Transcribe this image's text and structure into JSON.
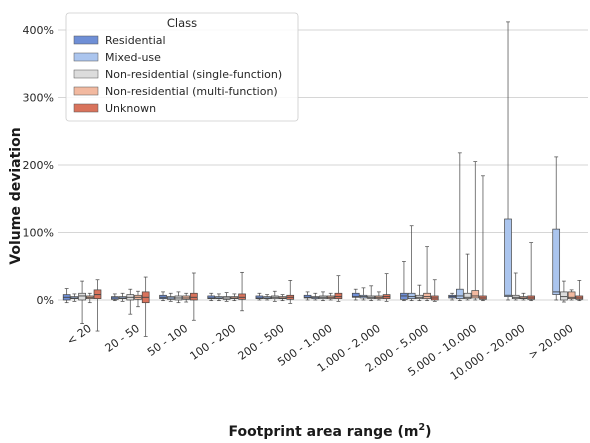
{
  "chart_data": {
    "type": "box",
    "xlabel": "Footprint area range (m",
    "xlabel_superscript": "2",
    "xlabel_suffix": ")",
    "ylabel": "Volume deviation",
    "ylim": [
      -0.2,
      4.4
    ],
    "yticks": [
      0,
      1,
      2,
      3,
      4
    ],
    "ytick_labels": [
      "0%",
      "100%",
      "200%",
      "300%",
      "400%"
    ],
    "grid": true,
    "legend": {
      "title": "Class",
      "placement": "top-left"
    },
    "categories": [
      "< 20",
      "20 - 50",
      "50 - 100",
      "100 - 200",
      "200 - 500",
      "500 - 1.000",
      "1.000 - 2.000",
      "2.000 - 5.000",
      "5.000 - 10.000",
      "10.000 - 20.000",
      "> 20.000"
    ],
    "series": [
      {
        "name": "Residential",
        "color": "#6f8fd6",
        "boxes": [
          {
            "whislo": -0.04,
            "q1": 0.0,
            "med": 0.04,
            "q3": 0.08,
            "whishi": 0.17
          },
          {
            "whislo": -0.01,
            "q1": 0.01,
            "med": 0.03,
            "q3": 0.05,
            "whishi": 0.09
          },
          {
            "whislo": -0.01,
            "q1": 0.02,
            "med": 0.04,
            "q3": 0.07,
            "whishi": 0.12
          },
          {
            "whislo": -0.01,
            "q1": 0.02,
            "med": 0.03,
            "q3": 0.06,
            "whishi": 0.1
          },
          {
            "whislo": 0.0,
            "q1": 0.02,
            "med": 0.03,
            "q3": 0.06,
            "whishi": 0.1
          },
          {
            "whislo": 0.0,
            "q1": 0.03,
            "med": 0.04,
            "q3": 0.07,
            "whishi": 0.12
          },
          {
            "whislo": 0.0,
            "q1": 0.04,
            "med": 0.05,
            "q3": 0.1,
            "whishi": 0.16
          },
          {
            "whislo": -0.01,
            "q1": 0.01,
            "med": 0.06,
            "q3": 0.1,
            "whishi": 0.57
          },
          {
            "whislo": 0.0,
            "q1": 0.03,
            "med": 0.05,
            "q3": 0.07,
            "whishi": 0.1
          },
          null,
          null
        ]
      },
      {
        "name": "Mixed-use",
        "color": "#abc5ee",
        "boxes": [
          {
            "whislo": -0.02,
            "q1": 0.02,
            "med": 0.03,
            "q3": 0.05,
            "whishi": 0.09
          },
          {
            "whislo": -0.02,
            "q1": 0.02,
            "med": 0.03,
            "q3": 0.05,
            "whishi": 0.1
          },
          {
            "whislo": -0.02,
            "q1": 0.01,
            "med": 0.03,
            "q3": 0.05,
            "whishi": 0.1
          },
          {
            "whislo": -0.01,
            "q1": 0.02,
            "med": 0.03,
            "q3": 0.05,
            "whishi": 0.09
          },
          {
            "whislo": 0.0,
            "q1": 0.02,
            "med": 0.03,
            "q3": 0.05,
            "whishi": 0.08
          },
          {
            "whislo": 0.0,
            "q1": 0.02,
            "med": 0.04,
            "q3": 0.05,
            "whishi": 0.1
          },
          {
            "whislo": 0.0,
            "q1": 0.03,
            "med": 0.05,
            "q3": 0.07,
            "whishi": 0.18
          },
          {
            "whislo": -0.01,
            "q1": 0.02,
            "med": 0.05,
            "q3": 0.1,
            "whishi": 1.1
          },
          {
            "whislo": -0.01,
            "q1": 0.02,
            "med": 0.06,
            "q3": 0.16,
            "whishi": 2.18
          },
          {
            "whislo": 0.0,
            "q1": 0.05,
            "med": 0.07,
            "q3": 1.2,
            "whishi": 4.12
          },
          {
            "whislo": 0.0,
            "q1": 0.08,
            "med": 0.12,
            "q3": 1.05,
            "whishi": 2.12
          }
        ]
      },
      {
        "name": "Non-residential (single-function)",
        "color": "#dcdcdc",
        "boxes": [
          {
            "whislo": -0.35,
            "q1": 0.0,
            "med": 0.06,
            "q3": 0.1,
            "whishi": 0.28
          },
          {
            "whislo": -0.21,
            "q1": 0.0,
            "med": 0.04,
            "q3": 0.08,
            "whishi": 0.16
          },
          {
            "whislo": -0.04,
            "q1": 0.0,
            "med": 0.03,
            "q3": 0.06,
            "whishi": 0.12
          },
          {
            "whislo": -0.02,
            "q1": 0.01,
            "med": 0.03,
            "q3": 0.05,
            "whishi": 0.11
          },
          {
            "whislo": -0.02,
            "q1": 0.02,
            "med": 0.04,
            "q3": 0.06,
            "whishi": 0.13
          },
          {
            "whislo": -0.01,
            "q1": 0.02,
            "med": 0.04,
            "q3": 0.06,
            "whishi": 0.12
          },
          {
            "whislo": -0.01,
            "q1": 0.02,
            "med": 0.04,
            "q3": 0.06,
            "whishi": 0.21
          },
          {
            "whislo": -0.01,
            "q1": 0.02,
            "med": 0.04,
            "q3": 0.07,
            "whishi": 0.22
          },
          {
            "whislo": 0.0,
            "q1": 0.02,
            "med": 0.04,
            "q3": 0.1,
            "whishi": 0.68
          },
          {
            "whislo": 0.0,
            "q1": 0.02,
            "med": 0.04,
            "q3": 0.07,
            "whishi": 0.4
          },
          {
            "whislo": -0.03,
            "q1": 0.0,
            "med": 0.05,
            "q3": 0.12,
            "whishi": 0.28
          }
        ]
      },
      {
        "name": "Non-residential (multi-function)",
        "color": "#f2b9a0",
        "boxes": [
          {
            "whislo": -0.04,
            "q1": 0.02,
            "med": 0.04,
            "q3": 0.06,
            "whishi": 0.1
          },
          {
            "whislo": -0.1,
            "q1": 0.01,
            "med": 0.04,
            "q3": 0.07,
            "whishi": 0.13
          },
          {
            "whislo": -0.03,
            "q1": 0.01,
            "med": 0.03,
            "q3": 0.06,
            "whishi": 0.1
          },
          {
            "whislo": -0.01,
            "q1": 0.02,
            "med": 0.03,
            "q3": 0.05,
            "whishi": 0.09
          },
          {
            "whislo": -0.01,
            "q1": 0.02,
            "med": 0.03,
            "q3": 0.05,
            "whishi": 0.08
          },
          {
            "whislo": 0.0,
            "q1": 0.02,
            "med": 0.04,
            "q3": 0.06,
            "whishi": 0.1
          },
          {
            "whislo": 0.0,
            "q1": 0.02,
            "med": 0.04,
            "q3": 0.06,
            "whishi": 0.12
          },
          {
            "whislo": -0.01,
            "q1": 0.02,
            "med": 0.05,
            "q3": 0.1,
            "whishi": 0.79
          },
          {
            "whislo": 0.0,
            "q1": 0.03,
            "med": 0.06,
            "q3": 0.14,
            "whishi": 2.05
          },
          {
            "whislo": 0.0,
            "q1": 0.02,
            "med": 0.03,
            "q3": 0.05,
            "whishi": 0.1
          },
          {
            "whislo": 0.0,
            "q1": 0.02,
            "med": 0.04,
            "q3": 0.12,
            "whishi": 0.15
          }
        ]
      },
      {
        "name": "Unknown",
        "color": "#d9735c",
        "boxes": [
          {
            "whislo": -0.46,
            "q1": 0.02,
            "med": 0.08,
            "q3": 0.15,
            "whishi": 0.3
          },
          {
            "whislo": -0.54,
            "q1": -0.04,
            "med": 0.04,
            "q3": 0.12,
            "whishi": 0.34
          },
          {
            "whislo": -0.3,
            "q1": 0.0,
            "med": 0.04,
            "q3": 0.1,
            "whishi": 0.4
          },
          {
            "whislo": -0.16,
            "q1": 0.01,
            "med": 0.04,
            "q3": 0.09,
            "whishi": 0.41
          },
          {
            "whislo": -0.05,
            "q1": 0.01,
            "med": 0.04,
            "q3": 0.07,
            "whishi": 0.29
          },
          {
            "whislo": -0.02,
            "q1": 0.02,
            "med": 0.05,
            "q3": 0.1,
            "whishi": 0.36
          },
          {
            "whislo": -0.02,
            "q1": 0.02,
            "med": 0.05,
            "q3": 0.08,
            "whishi": 0.39
          },
          {
            "whislo": -0.02,
            "q1": 0.0,
            "med": 0.03,
            "q3": 0.06,
            "whishi": 0.3
          },
          {
            "whislo": -0.01,
            "q1": 0.01,
            "med": 0.03,
            "q3": 0.06,
            "whishi": 1.84
          },
          {
            "whislo": -0.01,
            "q1": 0.01,
            "med": 0.03,
            "q3": 0.06,
            "whishi": 0.85
          },
          {
            "whislo": -0.01,
            "q1": 0.01,
            "med": 0.03,
            "q3": 0.06,
            "whishi": 0.29
          }
        ]
      }
    ]
  }
}
